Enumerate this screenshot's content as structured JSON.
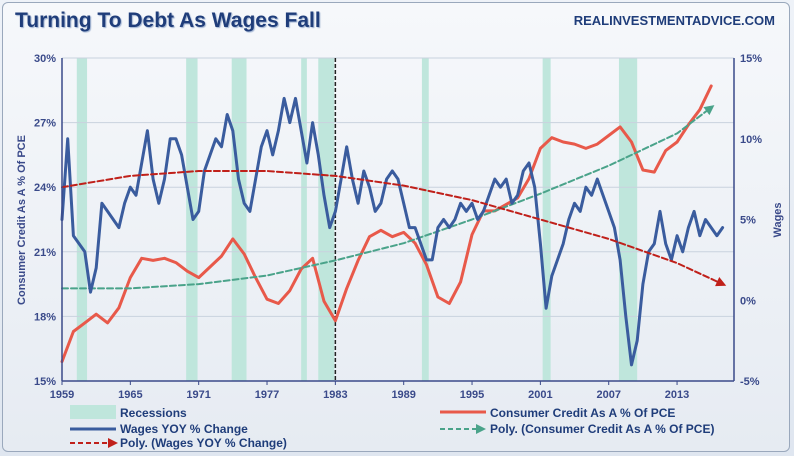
{
  "header": {
    "title": "Turning To Debt As Wages Fall",
    "source": "REALINVESTMENTADVICE.COM"
  },
  "chart_data": {
    "type": "line",
    "title": "Turning To Debt As Wages Fall",
    "xlim": [
      1959,
      2018
    ],
    "x_ticks": [
      "1959",
      "1965",
      "1971",
      "1977",
      "1983",
      "1989",
      "1995",
      "2001",
      "2007",
      "2013"
    ],
    "x_tick_values": [
      1959,
      1965,
      1971,
      1977,
      1983,
      1989,
      1995,
      2001,
      2007,
      2013
    ],
    "ylabel_left": "Consumer Credit As A % Of PCE",
    "ylabel_right": "Wages",
    "ylim_left": [
      15,
      30
    ],
    "ylim_right": [
      -5,
      15
    ],
    "y_ticks_left": [
      "15%",
      "18%",
      "21%",
      "24%",
      "27%",
      "30%"
    ],
    "y_tick_values_left": [
      15,
      18,
      21,
      24,
      27,
      30
    ],
    "y_ticks_right": [
      "-5%",
      "0%",
      "5%",
      "10%",
      "15%"
    ],
    "y_tick_values_right": [
      -5,
      0,
      5,
      10,
      15
    ],
    "marker_line_x": 1983,
    "recessions": [
      [
        1960.3,
        1961.2
      ],
      [
        1969.9,
        1970.9
      ],
      [
        1973.9,
        1975.2
      ],
      [
        1980.0,
        1980.5
      ],
      [
        1981.5,
        1982.9
      ],
      [
        1990.6,
        1991.2
      ],
      [
        2001.2,
        2001.9
      ],
      [
        2007.9,
        2009.5
      ]
    ],
    "legend_position": "bottom",
    "series": [
      {
        "name": "Consumer Credit As A % Of PCE",
        "axis": "left",
        "color": "#e8594a",
        "style": "solid",
        "points": [
          [
            1959,
            15.9
          ],
          [
            1960,
            17.3
          ],
          [
            1961,
            17.7
          ],
          [
            1962,
            18.1
          ],
          [
            1963,
            17.7
          ],
          [
            1964,
            18.4
          ],
          [
            1965,
            19.8
          ],
          [
            1966,
            20.7
          ],
          [
            1967,
            20.6
          ],
          [
            1968,
            20.7
          ],
          [
            1969,
            20.5
          ],
          [
            1970,
            20.1
          ],
          [
            1971,
            19.8
          ],
          [
            1972,
            20.3
          ],
          [
            1973,
            20.8
          ],
          [
            1974,
            21.6
          ],
          [
            1975,
            20.9
          ],
          [
            1976,
            19.8
          ],
          [
            1977,
            18.8
          ],
          [
            1978,
            18.6
          ],
          [
            1979,
            19.2
          ],
          [
            1980,
            20.2
          ],
          [
            1981,
            20.7
          ],
          [
            1982,
            18.7
          ],
          [
            1983,
            17.8
          ],
          [
            1984,
            19.3
          ],
          [
            1985,
            20.6
          ],
          [
            1986,
            21.7
          ],
          [
            1987,
            22.0
          ],
          [
            1988,
            21.7
          ],
          [
            1989,
            21.9
          ],
          [
            1990,
            21.4
          ],
          [
            1991,
            20.4
          ],
          [
            1992,
            18.9
          ],
          [
            1993,
            18.6
          ],
          [
            1994,
            19.6
          ],
          [
            1995,
            21.8
          ],
          [
            1996,
            22.9
          ],
          [
            1997,
            22.9
          ],
          [
            1998,
            23.2
          ],
          [
            1999,
            23.5
          ],
          [
            2000,
            24.4
          ],
          [
            2001,
            25.8
          ],
          [
            2002,
            26.3
          ],
          [
            2003,
            26.1
          ],
          [
            2004,
            26.0
          ],
          [
            2005,
            25.8
          ],
          [
            2006,
            26.0
          ],
          [
            2007,
            26.4
          ],
          [
            2008,
            26.8
          ],
          [
            2009,
            26.1
          ],
          [
            2010,
            24.8
          ],
          [
            2011,
            24.7
          ],
          [
            2012,
            25.7
          ],
          [
            2013,
            26.1
          ],
          [
            2014,
            26.9
          ],
          [
            2015,
            27.6
          ],
          [
            2016,
            28.7
          ]
        ]
      },
      {
        "name": "Wages YOY % Change",
        "axis": "right",
        "color": "#3a5c9e",
        "style": "solid",
        "points": [
          [
            1959,
            5.0
          ],
          [
            1959.5,
            10.0
          ],
          [
            1960,
            4.0
          ],
          [
            1961,
            3.0
          ],
          [
            1961.5,
            0.5
          ],
          [
            1962,
            2.0
          ],
          [
            1962.5,
            6.0
          ],
          [
            1963,
            5.5
          ],
          [
            1964,
            4.5
          ],
          [
            1964.5,
            6.0
          ],
          [
            1965,
            7.0
          ],
          [
            1965.5,
            6.5
          ],
          [
            1966,
            8.5
          ],
          [
            1966.5,
            10.5
          ],
          [
            1967,
            7.5
          ],
          [
            1967.5,
            6.0
          ],
          [
            1968,
            7.5
          ],
          [
            1968.5,
            10.0
          ],
          [
            1969,
            10.0
          ],
          [
            1969.5,
            9.0
          ],
          [
            1970,
            7.0
          ],
          [
            1970.5,
            5.0
          ],
          [
            1971,
            5.5
          ],
          [
            1971.5,
            8.0
          ],
          [
            1972,
            9.0
          ],
          [
            1972.5,
            10.0
          ],
          [
            1973,
            9.5
          ],
          [
            1973.5,
            11.5
          ],
          [
            1974,
            10.5
          ],
          [
            1974.5,
            7.5
          ],
          [
            1975,
            6.0
          ],
          [
            1975.5,
            5.5
          ],
          [
            1976,
            7.5
          ],
          [
            1976.5,
            9.5
          ],
          [
            1977,
            10.5
          ],
          [
            1977.5,
            9.0
          ],
          [
            1978,
            10.5
          ],
          [
            1978.5,
            12.5
          ],
          [
            1979,
            11.0
          ],
          [
            1979.5,
            12.5
          ],
          [
            1980,
            10.5
          ],
          [
            1980.5,
            8.5
          ],
          [
            1981,
            11.0
          ],
          [
            1981.5,
            9.0
          ],
          [
            1982,
            6.5
          ],
          [
            1982.5,
            4.5
          ],
          [
            1983,
            5.5
          ],
          [
            1983.5,
            7.5
          ],
          [
            1984,
            9.5
          ],
          [
            1984.5,
            7.5
          ],
          [
            1985,
            6.0
          ],
          [
            1985.5,
            8.0
          ],
          [
            1986,
            7.0
          ],
          [
            1986.5,
            5.5
          ],
          [
            1987,
            6.0
          ],
          [
            1987.5,
            7.5
          ],
          [
            1988,
            8.0
          ],
          [
            1988.5,
            7.5
          ],
          [
            1989,
            6.0
          ],
          [
            1989.5,
            4.5
          ],
          [
            1990,
            4.5
          ],
          [
            1990.5,
            3.5
          ],
          [
            1991,
            2.5
          ],
          [
            1991.5,
            2.5
          ],
          [
            1992,
            4.5
          ],
          [
            1992.5,
            5.0
          ],
          [
            1993,
            4.5
          ],
          [
            1993.5,
            5.0
          ],
          [
            1994,
            6.0
          ],
          [
            1994.5,
            5.5
          ],
          [
            1995,
            6.0
          ],
          [
            1995.5,
            5.0
          ],
          [
            1996,
            5.5
          ],
          [
            1996.5,
            6.5
          ],
          [
            1997,
            7.5
          ],
          [
            1997.5,
            7.0
          ],
          [
            1998,
            7.5
          ],
          [
            1998.5,
            6.0
          ],
          [
            1999,
            6.5
          ],
          [
            1999.5,
            8.0
          ],
          [
            2000,
            8.5
          ],
          [
            2000.5,
            7.0
          ],
          [
            2001,
            3.5
          ],
          [
            2001.5,
            -0.5
          ],
          [
            2002,
            1.5
          ],
          [
            2002.5,
            2.5
          ],
          [
            2003,
            3.5
          ],
          [
            2003.5,
            5.0
          ],
          [
            2004,
            6.0
          ],
          [
            2004.5,
            5.5
          ],
          [
            2005,
            7.0
          ],
          [
            2005.5,
            6.5
          ],
          [
            2006,
            7.5
          ],
          [
            2006.5,
            6.5
          ],
          [
            2007,
            5.5
          ],
          [
            2007.5,
            4.5
          ],
          [
            2008,
            2.5
          ],
          [
            2008.5,
            -1.0
          ],
          [
            2009,
            -4.0
          ],
          [
            2009.5,
            -2.5
          ],
          [
            2010,
            1.0
          ],
          [
            2010.5,
            3.0
          ],
          [
            2011,
            3.5
          ],
          [
            2011.5,
            5.5
          ],
          [
            2012,
            3.5
          ],
          [
            2012.5,
            2.5
          ],
          [
            2013,
            4.0
          ],
          [
            2013.5,
            3.0
          ],
          [
            2014,
            4.5
          ],
          [
            2014.5,
            5.5
          ],
          [
            2015,
            4.0
          ],
          [
            2015.5,
            5.0
          ],
          [
            2016,
            4.5
          ],
          [
            2016.5,
            4.0
          ],
          [
            2017,
            4.5
          ]
        ]
      },
      {
        "name": "Poly. (Consumer Credit As A % Of PCE)",
        "axis": "left",
        "color": "#4aa38a",
        "style": "dashed",
        "points": [
          [
            1959,
            19.3
          ],
          [
            1965,
            19.3
          ],
          [
            1971,
            19.5
          ],
          [
            1977,
            19.9
          ],
          [
            1983,
            20.6
          ],
          [
            1989,
            21.4
          ],
          [
            1995,
            22.5
          ],
          [
            2001,
            23.7
          ],
          [
            2007,
            25.0
          ],
          [
            2013,
            26.5
          ],
          [
            2016,
            27.7
          ]
        ]
      },
      {
        "name": "Poly. (Wages YOY % Change)",
        "axis": "right",
        "color": "#c0201a",
        "style": "dashed",
        "points": [
          [
            1959,
            7.0
          ],
          [
            1965,
            7.7
          ],
          [
            1971,
            8.0
          ],
          [
            1977,
            8.0
          ],
          [
            1983,
            7.7
          ],
          [
            1989,
            7.1
          ],
          [
            1995,
            6.2
          ],
          [
            2001,
            5.0
          ],
          [
            2007,
            3.8
          ],
          [
            2013,
            2.3
          ],
          [
            2017,
            1.0
          ]
        ]
      }
    ]
  },
  "legend": {
    "recessions": "Recessions",
    "wages": "Wages YOY % Change",
    "poly_wages": "Poly. (Wages YOY % Change)",
    "credit": "Consumer Credit As A % Of PCE",
    "poly_credit": "Poly. (Consumer Credit As A % Of PCE)"
  },
  "colors": {
    "recession_fill": "#bfe6dc",
    "axis_color": "#3a4a8a"
  }
}
